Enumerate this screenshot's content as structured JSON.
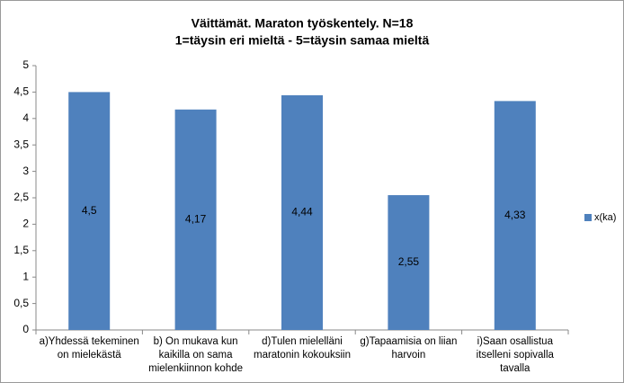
{
  "chart_data": {
    "type": "bar",
    "title": "Väittämät. Maraton työskentely. N=18",
    "subtitle": "1=täysin eri mieltä - 5=täysin samaa mieltä",
    "categories": [
      "a)Yhdessä tekeminen on mielekästä",
      "b) On mukava kun kaikilla on sama mielenkiinnon kohde",
      "d)Tulen mielelläni maratonin kokouksiin",
      "g)Tapaamisia on liian harvoin",
      "i)Saan osallistua itselleni sopivalla tavalla"
    ],
    "series": [
      {
        "name": "x(ka)",
        "color": "#4f81bd",
        "values": [
          4.5,
          4.17,
          4.44,
          2.55,
          4.33
        ],
        "value_labels": [
          "4,5",
          "4,17",
          "4,44",
          "2,55",
          "4,33"
        ]
      }
    ],
    "ylim": [
      0,
      5
    ],
    "yticks": [
      0,
      {
        "value": 0.5,
        "label": "0,5"
      },
      1,
      {
        "value": 1.5,
        "label": "1,5"
      },
      2,
      {
        "value": 2.5,
        "label": "2,5"
      },
      3,
      {
        "value": 3.5,
        "label": "3,5"
      },
      4,
      {
        "value": 4.5,
        "label": "4,5"
      },
      5
    ],
    "legend": "right"
  }
}
